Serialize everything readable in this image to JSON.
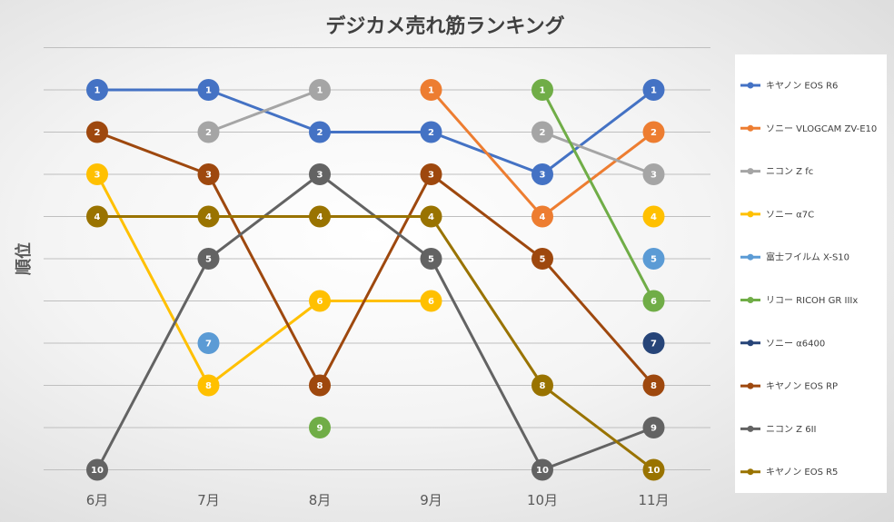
{
  "chart_data": {
    "type": "line",
    "title": "デジカメ売れ筋ランキング",
    "ylabel": "順位",
    "xlabel": "",
    "categories": [
      "6月",
      "7月",
      "8月",
      "9月",
      "10月",
      "11月"
    ],
    "y_reversed": true,
    "ylim": [
      10,
      1
    ],
    "grid": true,
    "legend_position": "right",
    "series": [
      {
        "name": "キヤノン EOS R6",
        "color": "#4472C4",
        "values": [
          1,
          1,
          2,
          2,
          3,
          1
        ]
      },
      {
        "name": "ソニー VLOGCAM ZV-E10",
        "color": "#ED7D31",
        "values": [
          null,
          null,
          null,
          1,
          4,
          2
        ]
      },
      {
        "name": "ニコン Z fc",
        "color": "#A5A5A5",
        "values": [
          null,
          2,
          1,
          null,
          2,
          3
        ]
      },
      {
        "name": "ソニー α7C",
        "color": "#FFC000",
        "values": [
          3,
          8,
          6,
          6,
          null,
          4
        ]
      },
      {
        "name": "富士フイルム X-S10",
        "color": "#5B9BD5",
        "values": [
          null,
          7,
          null,
          null,
          null,
          5
        ]
      },
      {
        "name": "リコー RICOH GR IIIx",
        "color": "#70AD47",
        "values": [
          null,
          null,
          9,
          null,
          1,
          6
        ]
      },
      {
        "name": "ソニー α6400",
        "color": "#264478",
        "values": [
          null,
          null,
          null,
          null,
          null,
          7
        ]
      },
      {
        "name": "キヤノン EOS RP",
        "color": "#9E480E",
        "values": [
          2,
          3,
          8,
          3,
          5,
          8
        ]
      },
      {
        "name": "ニコン Z 6II",
        "color": "#636363",
        "values": [
          10,
          5,
          3,
          5,
          10,
          9
        ]
      },
      {
        "name": "キヤノン EOS R5",
        "color": "#997300",
        "values": [
          4,
          4,
          4,
          4,
          8,
          10
        ]
      }
    ]
  }
}
